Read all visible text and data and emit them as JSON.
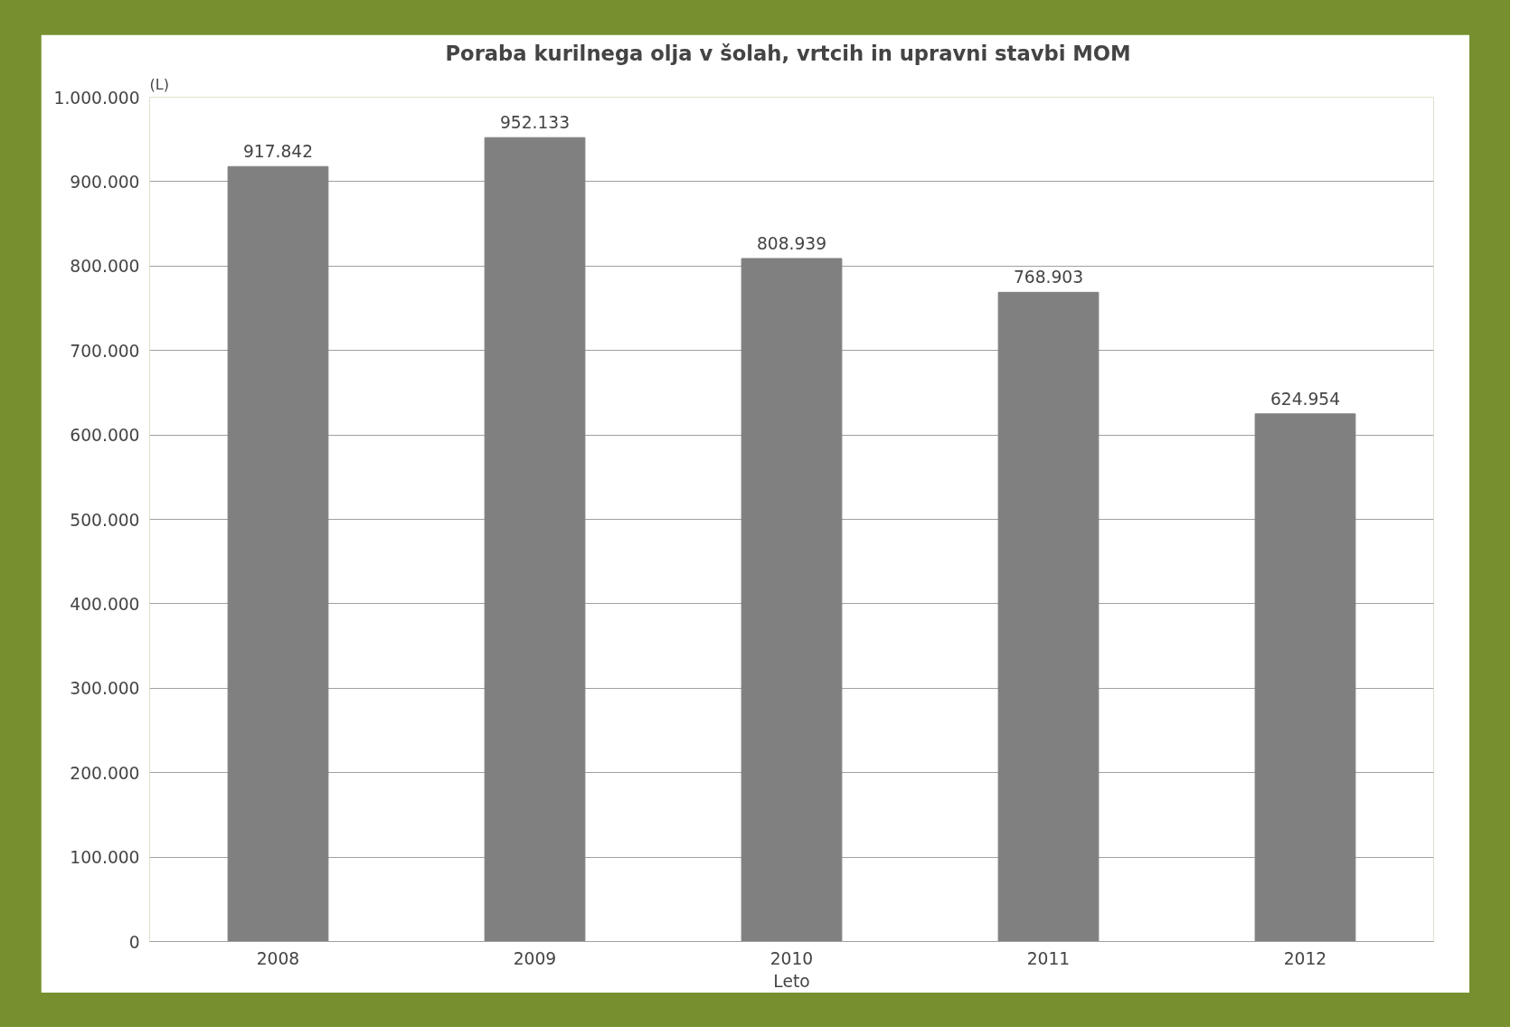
{
  "chart_data": {
    "type": "bar",
    "title": "Poraba kurilnega olja v šolah,  vrtcih in upravni stavbi MOM",
    "ylabel": "(L)",
    "xlabel": "Leto",
    "categories": [
      "2008",
      "2009",
      "2010",
      "2011",
      "2012"
    ],
    "values": [
      917842,
      952133,
      808939,
      768903,
      624954
    ],
    "value_labels": [
      "917.842",
      "952.133",
      "808.939",
      "768.903",
      "624.954"
    ],
    "color": "#808080",
    "ylim": [
      0,
      1000000
    ],
    "yticks": [
      0,
      {
        "value": 100000,
        "label": "100.000"
      },
      {
        "value": 200000,
        "label": "200.000"
      },
      {
        "value": 300000,
        "label": "300.000"
      },
      {
        "value": 400000,
        "label": "400.000"
      },
      {
        "value": 500000,
        "label": "500.000"
      },
      {
        "value": 600000,
        "label": "600.000"
      },
      {
        "value": 700000,
        "label": "700.000"
      },
      {
        "value": 800000,
        "label": "800.000"
      },
      {
        "value": 900000,
        "label": "900.000"
      },
      {
        "value": 1000000,
        "label": "1.000.000"
      }
    ],
    "grid": "y"
  }
}
